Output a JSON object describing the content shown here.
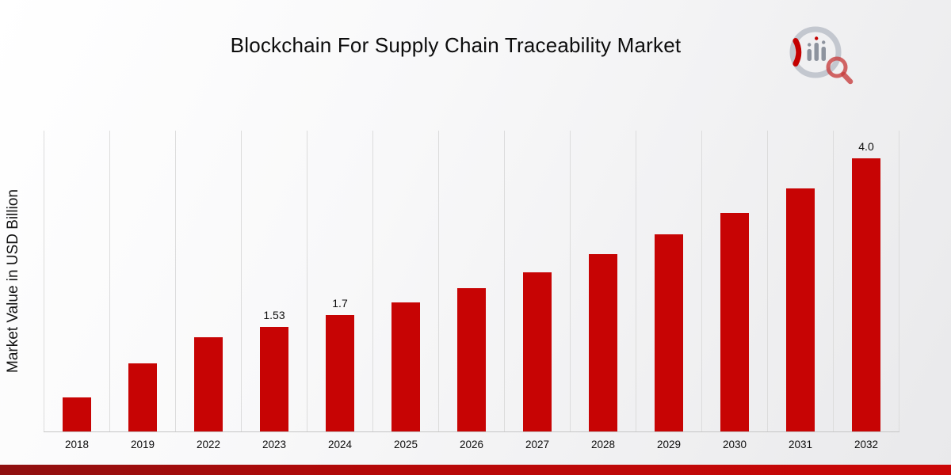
{
  "chart_data": {
    "type": "bar",
    "title": "Blockchain For Supply Chain Traceability Market",
    "xlabel": "",
    "ylabel": "Market Value in USD Billion",
    "categories": [
      "2018",
      "2019",
      "2022",
      "2023",
      "2024",
      "2025",
      "2026",
      "2027",
      "2028",
      "2029",
      "2030",
      "2031",
      "2032"
    ],
    "values": [
      0.5,
      1.0,
      1.38,
      1.53,
      1.7,
      1.89,
      2.1,
      2.33,
      2.59,
      2.88,
      3.2,
      3.56,
      4.0
    ],
    "data_labels": [
      "",
      "",
      "",
      "1.53",
      "1.7",
      "",
      "",
      "",
      "",
      "",
      "",
      "",
      "4.0"
    ],
    "bar_color": "#c70404",
    "ylim": [
      0,
      4.4
    ],
    "grid": "vertical-only",
    "legend": "none"
  },
  "colors": {
    "accent_red": "#c40000",
    "logo_gray": "#c3c7cf",
    "footer_gradient_start": "#8f1010",
    "footer_gradient_end": "#cb0707"
  }
}
